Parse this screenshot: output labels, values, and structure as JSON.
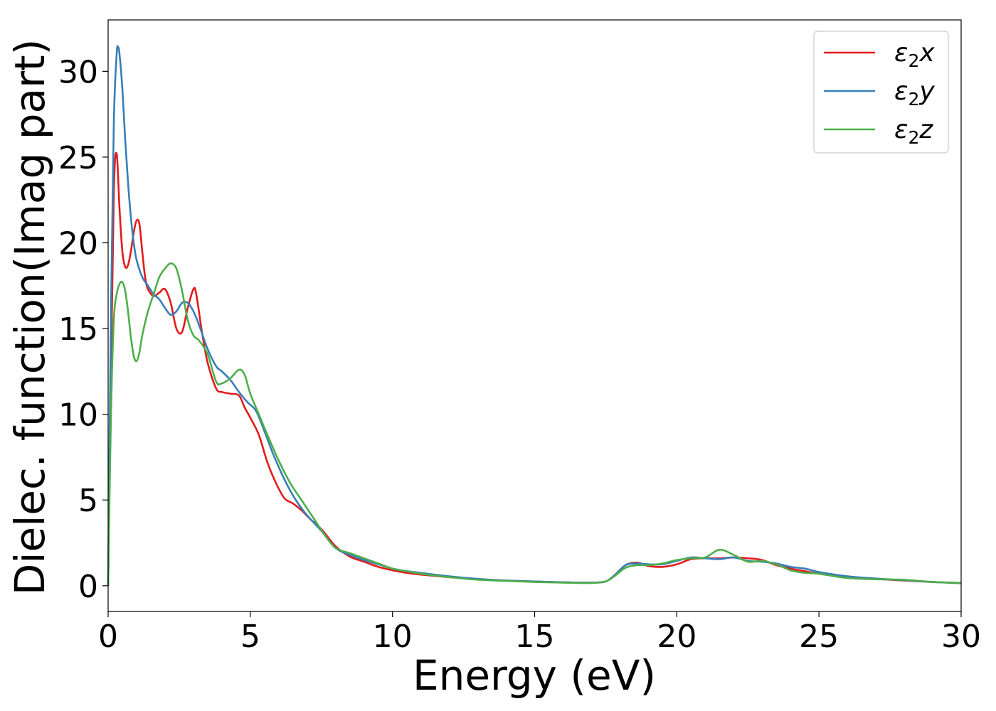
{
  "chart_data": {
    "type": "line",
    "title": "",
    "xlabel": "Energy (eV)",
    "ylabel": "Dielec. function(Imag part)",
    "xlim": [
      0,
      30
    ],
    "ylim": [
      -1.5,
      33
    ],
    "xticks": [
      0,
      5,
      10,
      15,
      20,
      25,
      30
    ],
    "yticks": [
      0,
      5,
      10,
      15,
      20,
      25,
      30
    ],
    "grid": false,
    "legend_position": "top-right",
    "series": [
      {
        "name": "ε₂x",
        "legend_base": "ε",
        "legend_sub": "2",
        "legend_var": "x",
        "color": "#e41a1c",
        "x": [
          0,
          0.1,
          0.2,
          0.3,
          0.4,
          0.5,
          0.6,
          0.7,
          0.8,
          0.9,
          1.0,
          1.1,
          1.2,
          1.3,
          1.4,
          1.6,
          1.8,
          2.0,
          2.2,
          2.4,
          2.6,
          2.8,
          3.0,
          3.1,
          3.3,
          3.5,
          3.8,
          4.0,
          4.3,
          4.6,
          4.8,
          5.0,
          5.3,
          5.6,
          5.9,
          6.2,
          6.5,
          6.8,
          7.1,
          7.5,
          8.0,
          8.5,
          9.0,
          9.5,
          10,
          10.5,
          11,
          12,
          13,
          14,
          15,
          16,
          17,
          17.5,
          17.8,
          18.2,
          18.6,
          19.0,
          19.5,
          20.0,
          20.5,
          21.0,
          21.5,
          22.0,
          22.5,
          23.0,
          23.5,
          24.0,
          24.5,
          25,
          26,
          27,
          28,
          29,
          30
        ],
        "values": [
          0,
          12,
          23,
          25.2,
          22,
          19.5,
          18.6,
          18.7,
          19.5,
          20.6,
          21.3,
          21.1,
          19.5,
          18.0,
          17.3,
          16.9,
          17.1,
          17.3,
          16.5,
          15.0,
          14.8,
          16.2,
          17.3,
          17.0,
          14.8,
          13.0,
          11.5,
          11.3,
          11.2,
          11.1,
          10.4,
          9.8,
          8.8,
          7.2,
          6.0,
          5.1,
          4.8,
          4.4,
          3.9,
          3.3,
          2.3,
          1.7,
          1.4,
          1.1,
          0.9,
          0.75,
          0.65,
          0.5,
          0.38,
          0.3,
          0.25,
          0.2,
          0.18,
          0.25,
          0.6,
          1.2,
          1.35,
          1.15,
          1.1,
          1.25,
          1.55,
          1.6,
          1.6,
          1.65,
          1.6,
          1.5,
          1.2,
          1.0,
          0.85,
          0.7,
          0.5,
          0.4,
          0.3,
          0.22,
          0.15
        ]
      },
      {
        "name": "ε₂y",
        "legend_base": "ε",
        "legend_sub": "2",
        "legend_var": "y",
        "color": "#377eb8",
        "x": [
          0,
          0.1,
          0.2,
          0.3,
          0.35,
          0.4,
          0.5,
          0.6,
          0.7,
          0.8,
          0.9,
          1.0,
          1.2,
          1.4,
          1.6,
          1.8,
          2.0,
          2.2,
          2.4,
          2.6,
          2.8,
          3.0,
          3.2,
          3.5,
          3.8,
          4.0,
          4.3,
          4.6,
          4.9,
          5.2,
          5.5,
          5.8,
          6.2,
          6.6,
          7.0,
          7.5,
          8.0,
          8.5,
          9.0,
          9.5,
          10,
          10.5,
          11,
          12,
          13,
          14,
          15,
          16,
          17,
          17.5,
          17.8,
          18.2,
          18.6,
          19.0,
          19.5,
          20.0,
          20.5,
          21.0,
          21.5,
          22.0,
          22.5,
          23.0,
          23.5,
          24.0,
          24.5,
          25,
          26,
          27,
          28,
          29,
          30
        ],
        "values": [
          0,
          16,
          27,
          31.0,
          31.4,
          31.0,
          29.0,
          26.0,
          23.5,
          21.5,
          20.0,
          19.0,
          18.0,
          17.5,
          17.0,
          16.7,
          16.2,
          15.8,
          16.0,
          16.5,
          16.5,
          16.0,
          15.2,
          13.8,
          12.8,
          12.5,
          12.0,
          11.3,
          10.7,
          10.2,
          9.0,
          7.7,
          6.2,
          5.0,
          4.1,
          3.2,
          2.2,
          1.8,
          1.5,
          1.25,
          1.0,
          0.85,
          0.75,
          0.55,
          0.4,
          0.3,
          0.25,
          0.2,
          0.18,
          0.25,
          0.6,
          1.2,
          1.3,
          1.25,
          1.25,
          1.45,
          1.65,
          1.6,
          1.55,
          1.65,
          1.45,
          1.4,
          1.3,
          1.1,
          1.0,
          0.8,
          0.55,
          0.42,
          0.32,
          0.22,
          0.15
        ]
      },
      {
        "name": "ε₂z",
        "legend_base": "ε",
        "legend_sub": "2",
        "legend_var": "z",
        "color": "#4daf4a",
        "x": [
          0,
          0.1,
          0.2,
          0.3,
          0.4,
          0.5,
          0.6,
          0.7,
          0.8,
          0.9,
          1.0,
          1.1,
          1.2,
          1.4,
          1.6,
          1.8,
          2.0,
          2.2,
          2.4,
          2.6,
          2.8,
          3.0,
          3.2,
          3.5,
          3.8,
          4.0,
          4.3,
          4.6,
          4.8,
          5.0,
          5.3,
          5.6,
          6.0,
          6.4,
          6.8,
          7.2,
          7.6,
          8.0,
          8.5,
          9.0,
          9.5,
          10,
          10.5,
          11,
          12,
          13,
          14,
          15,
          16,
          17,
          17.5,
          17.8,
          18.2,
          18.6,
          19.0,
          19.5,
          20.0,
          20.5,
          21.0,
          21.5,
          22.0,
          22.5,
          23.0,
          23.5,
          24.0,
          24.5,
          25,
          26,
          27,
          28,
          29,
          30
        ],
        "values": [
          0,
          10,
          15.5,
          17.0,
          17.6,
          17.7,
          17.2,
          16.0,
          14.5,
          13.4,
          13.1,
          13.6,
          14.6,
          16.0,
          17.0,
          18.0,
          18.5,
          18.8,
          18.5,
          17.2,
          15.5,
          14.6,
          14.3,
          13.5,
          11.9,
          11.8,
          12.1,
          12.6,
          12.3,
          11.2,
          10.0,
          8.8,
          7.3,
          6.0,
          5.0,
          4.0,
          3.0,
          2.2,
          1.9,
          1.6,
          1.3,
          1.0,
          0.85,
          0.7,
          0.5,
          0.35,
          0.28,
          0.22,
          0.18,
          0.16,
          0.25,
          0.55,
          1.05,
          1.2,
          1.2,
          1.3,
          1.5,
          1.6,
          1.65,
          2.1,
          1.8,
          1.4,
          1.45,
          1.25,
          0.9,
          0.75,
          0.7,
          0.45,
          0.38,
          0.35,
          0.22,
          0.17
        ]
      }
    ]
  }
}
